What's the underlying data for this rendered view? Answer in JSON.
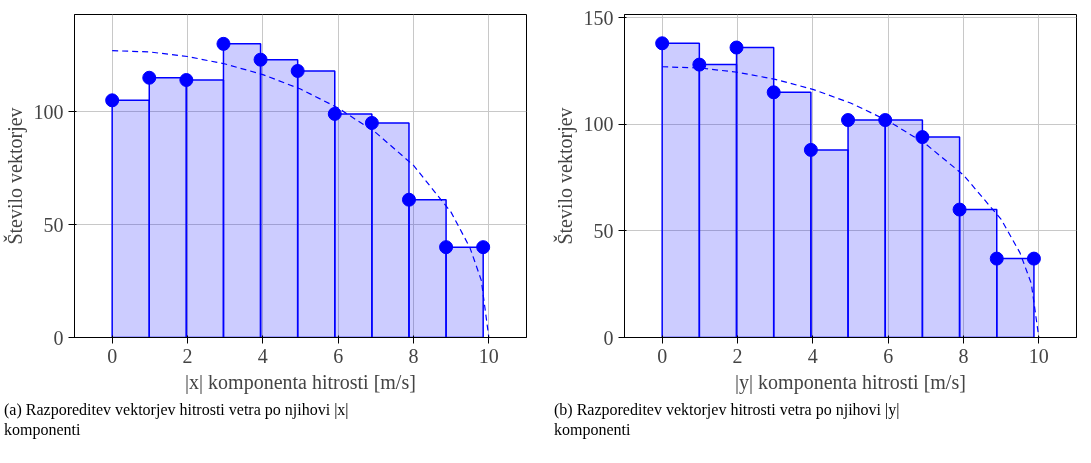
{
  "chart_data": [
    {
      "type": "histogram",
      "xlabel": "|x| komponenta hitrosti [m/s]",
      "ylabel": "Število vektorjev",
      "annotations": [
        "(a) Razporeditev vektorjev hitrosti vetra po njihovi |x| komponenti"
      ],
      "xlim": [
        -1,
        11
      ],
      "ylim": [
        0,
        143
      ],
      "xticks": [
        0,
        2,
        4,
        6,
        8,
        10
      ],
      "yticks": [
        0,
        50,
        100
      ],
      "grid": true,
      "series": [
        {
          "color": "#0000ff",
          "bins": [
            0,
            0.985,
            1.97,
            2.955,
            3.94,
            4.925,
            5.91,
            6.895,
            7.88,
            8.865,
            9.85
          ],
          "values": [
            105,
            115,
            114,
            130,
            123,
            118,
            99,
            95,
            61,
            40
          ]
        },
        {
          "type": "scatter",
          "color": "#0000ff",
          "marker": "circle",
          "x": [
            0,
            0.985,
            1.97,
            2.955,
            3.94,
            4.925,
            5.91,
            6.895,
            7.88,
            8.865,
            9.85
          ],
          "values": [
            105,
            115,
            114,
            130,
            123,
            118,
            99,
            95,
            61,
            40,
            40
          ]
        },
        {
          "type": "line",
          "color": "#0000ff",
          "line_style": "dashed",
          "x": [
            0,
            1,
            2,
            3,
            4,
            5,
            6,
            7,
            8,
            9,
            9.5,
            9.8,
            10
          ],
          "values": [
            127,
            126.4,
            124.4,
            121.1,
            116.4,
            110,
            101.6,
            90.7,
            76.2,
            55.4,
            39.7,
            25.3,
            0
          ]
        }
      ]
    },
    {
      "type": "histogram",
      "xlabel": "|y| komponenta hitrosti [m/s]",
      "ylabel": "Število vektorjev",
      "annotations": [
        "(b) Razporeditev vektorjev hitrosti vetra po njihovi |y| komponenti"
      ],
      "xlim": [
        -1,
        11
      ],
      "ylim": [
        0,
        151.5
      ],
      "xticks": [
        0,
        2,
        4,
        6,
        8,
        10
      ],
      "yticks": [
        0,
        50,
        100,
        150
      ],
      "grid": true,
      "series": [
        {
          "color": "#0000ff",
          "bins": [
            0,
            0.987,
            1.974,
            2.961,
            3.948,
            4.935,
            5.922,
            6.909,
            7.896,
            8.883,
            9.87
          ],
          "values": [
            138,
            128,
            136,
            115,
            88,
            102,
            102,
            94,
            60,
            37
          ]
        },
        {
          "type": "scatter",
          "color": "#0000ff",
          "marker": "circle",
          "x": [
            0,
            0.987,
            1.974,
            2.961,
            3.948,
            4.935,
            5.922,
            6.909,
            7.896,
            8.883,
            9.87
          ],
          "values": [
            138,
            128,
            136,
            115,
            88,
            102,
            102,
            94,
            60,
            37,
            37
          ]
        },
        {
          "type": "line",
          "color": "#0000ff",
          "line_style": "dashed",
          "x": [
            0,
            1,
            2,
            3,
            4,
            5,
            6,
            7,
            8,
            9,
            9.5,
            9.8,
            10
          ],
          "values": [
            127,
            126.4,
            124.4,
            121.1,
            116.4,
            110,
            101.6,
            90.7,
            76.2,
            55.4,
            39.7,
            25.3,
            0
          ]
        }
      ]
    }
  ]
}
